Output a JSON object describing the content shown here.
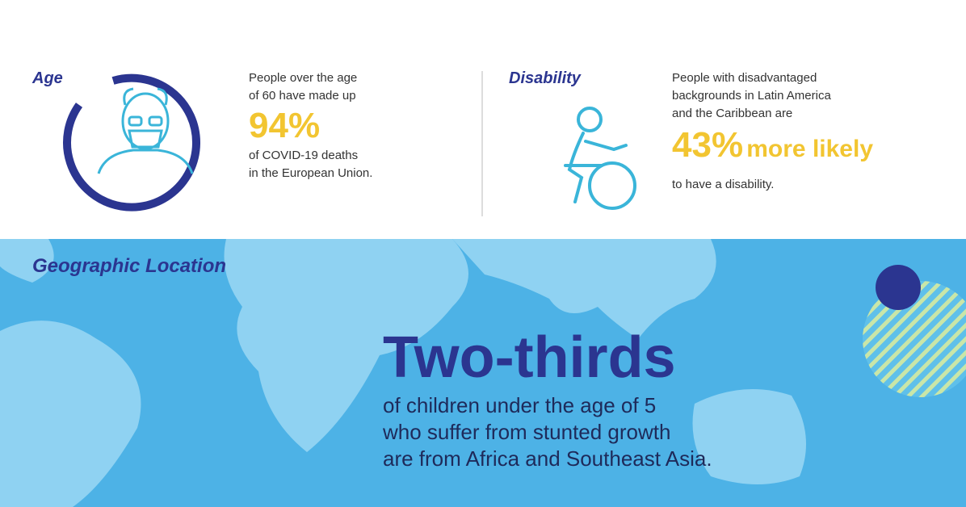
{
  "age": {
    "label": "Age",
    "text_before": [
      "People over the age",
      "of 60 have made up"
    ],
    "stat": "94%",
    "text_after": [
      "of COVID-19 deaths",
      "in the European Union."
    ]
  },
  "disability": {
    "label": "Disability",
    "text_before": [
      "People with disadvantaged",
      "backgrounds in Latin America",
      "and the Caribbean are"
    ],
    "stat": "43%",
    "stat_suffix": "more likely",
    "text_after": [
      "to have a disability."
    ]
  },
  "geographic": {
    "label": "Geographic Location",
    "stat": "Two-thirds",
    "text": [
      "of children under the age of 5",
      "who suffer from stunted growth",
      "are from Africa and Southeast Asia."
    ]
  }
}
